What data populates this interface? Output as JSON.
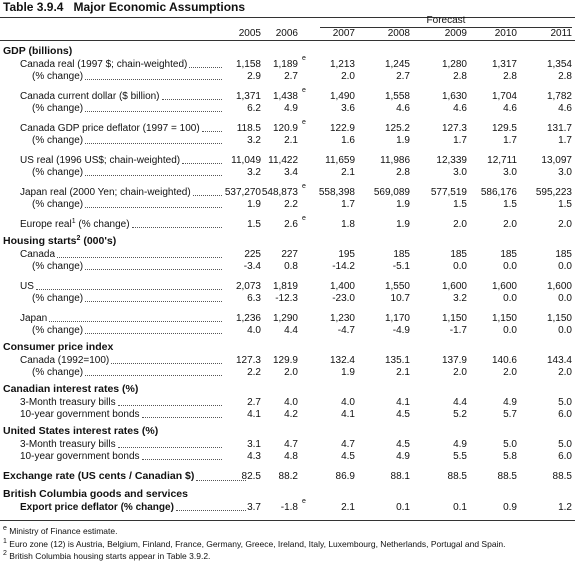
{
  "title": "Table 3.9.4   Major Economic Assumptions",
  "header": {
    "forecast": "Forecast",
    "years": [
      "2005",
      "2006",
      "2007",
      "2008",
      "2009",
      "2010",
      "2011"
    ]
  },
  "sections": [
    {
      "title": "GDP (billions)",
      "groups": [
        [
          {
            "label": "Canada real (1997 $; chain-weighted)",
            "cells": [
              "1,158",
              {
                "text": "1,189",
                "note": "e"
              },
              "1,213",
              "1,245",
              "1,280",
              "1,317",
              "1,354"
            ]
          },
          {
            "label": "(% change)",
            "cells": [
              "2.9",
              "2.7",
              "2.0",
              "2.7",
              "2.8",
              "2.8",
              "2.8"
            ]
          }
        ],
        [
          {
            "label": "Canada current dollar ($ billion)",
            "cells": [
              "1,371",
              {
                "text": "1,438",
                "note": "e"
              },
              "1,490",
              "1,558",
              "1,630",
              "1,704",
              "1,782"
            ]
          },
          {
            "label": "(% change)",
            "cells": [
              "6.2",
              "4.9",
              "3.6",
              "4.6",
              "4.6",
              "4.6",
              "4.6"
            ]
          }
        ],
        [
          {
            "label": "Canada GDP price deflator (1997 = 100)",
            "cells": [
              "118.5",
              {
                "text": "120.9",
                "note": "e"
              },
              "122.9",
              "125.2",
              "127.3",
              "129.5",
              "131.7"
            ]
          },
          {
            "label": "(% change)",
            "cells": [
              "3.2",
              "2.1",
              "1.6",
              "1.9",
              "1.7",
              "1.7",
              "1.7"
            ]
          }
        ],
        [
          {
            "label": "US real (1996 US$; chain-weighted)",
            "cells": [
              "11,049",
              "11,422",
              "11,659",
              "11,986",
              "12,339",
              "12,711",
              "13,097"
            ]
          },
          {
            "label": "(% change)",
            "cells": [
              "3.2",
              "3.4",
              "2.1",
              "2.8",
              "3.0",
              "3.0",
              "3.0"
            ]
          }
        ],
        [
          {
            "label": "Japan real (2000 Yen; chain-weighted)",
            "cells": [
              "537,270",
              {
                "text": "548,873",
                "note": "e"
              },
              "558,398",
              "569,089",
              "577,519",
              "586,176",
              "595,223"
            ]
          },
          {
            "label": "(% change)",
            "cells": [
              "1.9",
              "2.2",
              "1.7",
              "1.9",
              "1.5",
              "1.5",
              "1.5"
            ]
          }
        ],
        [
          {
            "label": "Europe real",
            "label_sup": "1",
            "label_after": " (% change)",
            "cells": [
              "1.5",
              {
                "text": "2.6",
                "note": "e"
              },
              "1.8",
              "1.9",
              "2.0",
              "2.0",
              "2.0"
            ]
          }
        ]
      ]
    },
    {
      "title": "Housing starts",
      "title_sup": "2",
      "title_after": " (000's)",
      "groups": [
        [
          {
            "label": "Canada",
            "cells": [
              "225",
              "227",
              "195",
              "185",
              "185",
              "185",
              "185"
            ]
          },
          {
            "label": "(% change)",
            "cells": [
              "-3.4",
              "0.8",
              "-14.2",
              "-5.1",
              "0.0",
              "0.0",
              "0.0"
            ]
          }
        ],
        [
          {
            "label": "US",
            "cells": [
              "2,073",
              "1,819",
              "1,400",
              "1,550",
              "1,600",
              "1,600",
              "1,600"
            ]
          },
          {
            "label": "(% change)",
            "cells": [
              "6.3",
              "-12.3",
              "-23.0",
              "10.7",
              "3.2",
              "0.0",
              "0.0"
            ]
          }
        ],
        [
          {
            "label": "Japan",
            "cells": [
              "1,236",
              "1,290",
              "1,230",
              "1,170",
              "1,150",
              "1,150",
              "1,150"
            ]
          },
          {
            "label": "(% change)",
            "cells": [
              "4.0",
              "4.4",
              "-4.7",
              "-4.9",
              "-1.7",
              "0.0",
              "0.0"
            ]
          }
        ]
      ]
    },
    {
      "title": "Consumer price index",
      "groups": [
        [
          {
            "label": "Canada (1992=100)",
            "cells": [
              "127.3",
              "129.9",
              "132.4",
              "135.1",
              "137.9",
              "140.6",
              "143.4"
            ]
          },
          {
            "label": "(% change)",
            "cells": [
              "2.2",
              "2.0",
              "1.9",
              "2.1",
              "2.0",
              "2.0",
              "2.0"
            ]
          }
        ]
      ]
    },
    {
      "title": "Canadian interest rates (%)",
      "groups": [
        [
          {
            "label": "3-Month treasury bills",
            "cells": [
              "2.7",
              "4.0",
              "4.0",
              "4.1",
              "4.4",
              "4.9",
              "5.0"
            ]
          },
          {
            "label": "10-year government bonds",
            "cells": [
              "4.1",
              "4.2",
              "4.1",
              "4.5",
              "5.2",
              "5.7",
              "6.0"
            ]
          }
        ]
      ]
    },
    {
      "title": "United States interest rates (%)",
      "groups": [
        [
          {
            "label": "3-Month treasury bills",
            "cells": [
              "3.1",
              "4.7",
              "4.7",
              "4.5",
              "4.9",
              "5.0",
              "5.0"
            ]
          },
          {
            "label": "10-year government bonds",
            "cells": [
              "4.3",
              "4.8",
              "4.5",
              "4.9",
              "5.5",
              "5.8",
              "6.0"
            ]
          }
        ]
      ]
    },
    {
      "title": "Exchange rate (US cents / Canadian $)",
      "cells": [
        "82.5",
        "88.2",
        "86.9",
        "88.1",
        "88.5",
        "88.5",
        "88.5"
      ]
    },
    {
      "title": "British Columbia goods and services",
      "groups": [
        [
          {
            "label": "Export price deflator (% change)",
            "emphasis": true,
            "cells": [
              "3.7",
              {
                "text": "-1.8",
                "note": "e"
              },
              "2.1",
              "0.1",
              "0.1",
              "0.9",
              "1.2"
            ]
          }
        ]
      ]
    }
  ],
  "footnotes": [
    {
      "mark": "e",
      "text": "Ministry of Finance estimate."
    },
    {
      "mark": "1",
      "text": "Euro zone (12) is Austria, Belgium, Finland, France, Germany, Greece, Ireland, Italy, Luxembourg, Netherlands, Portugal and Spain."
    },
    {
      "mark": "2",
      "text": "British Columbia housing starts appear in Table 3.9.2."
    }
  ]
}
